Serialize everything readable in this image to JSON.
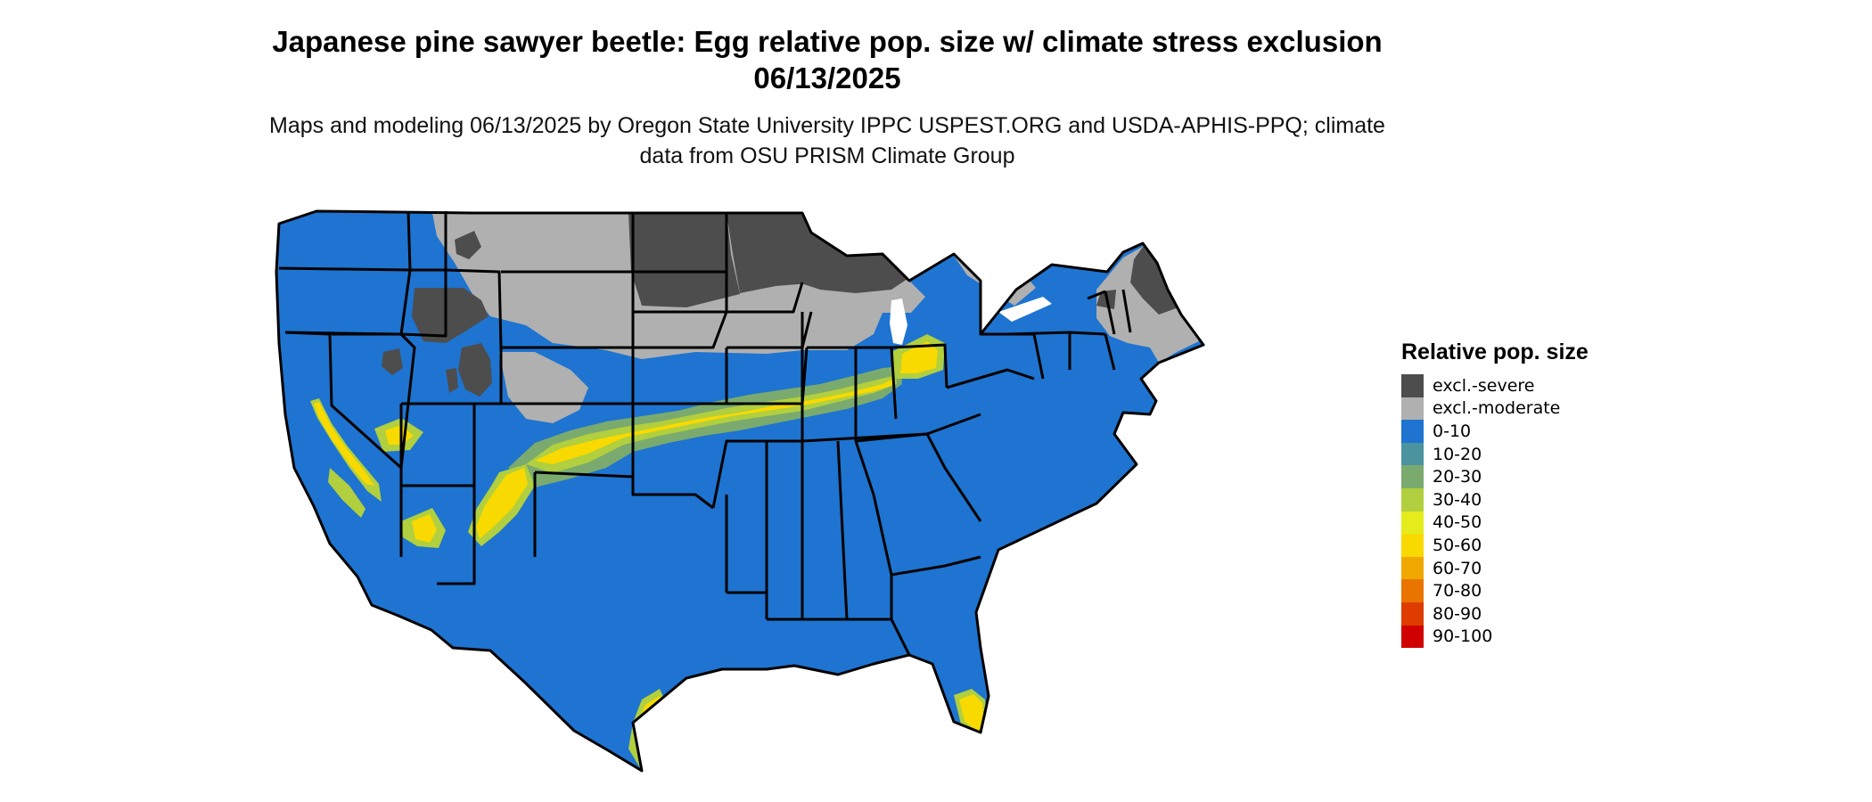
{
  "title": "Japanese pine sawyer beetle: Egg relative pop. size w/ climate stress exclusion 06/13/2025",
  "subtitle": "Maps and modeling 06/13/2025 by Oregon State University IPPC USPEST.ORG and USDA-APHIS-PPQ; climate data from OSU PRISM Climate Group",
  "legend": {
    "title": "Relative pop. size",
    "items": [
      {
        "label": "excl.-severe",
        "color": "#4d4d4d"
      },
      {
        "label": "excl.-moderate",
        "color": "#b0b0b0"
      },
      {
        "label": "0-10",
        "color": "#1e74d0"
      },
      {
        "label": "10-20",
        "color": "#4c93a0"
      },
      {
        "label": "20-30",
        "color": "#7aaa6e"
      },
      {
        "label": "30-40",
        "color": "#b1cf3e"
      },
      {
        "label": "40-50",
        "color": "#e4ec1c"
      },
      {
        "label": "50-60",
        "color": "#f8da00"
      },
      {
        "label": "60-70",
        "color": "#f0a800"
      },
      {
        "label": "70-80",
        "color": "#ea7400"
      },
      {
        "label": "80-90",
        "color": "#de3c00"
      },
      {
        "label": "90-100",
        "color": "#d00000"
      }
    ]
  },
  "map": {
    "region": "contiguous-united-states",
    "colors": {
      "land": "#1e74d0",
      "excl_severe": "#4d4d4d",
      "excl_moderate": "#b0b0b0",
      "band_outer": "#7aaa6e",
      "band_mid": "#b1cf3e",
      "band_core": "#f8da00",
      "boundary": "#000000"
    }
  }
}
